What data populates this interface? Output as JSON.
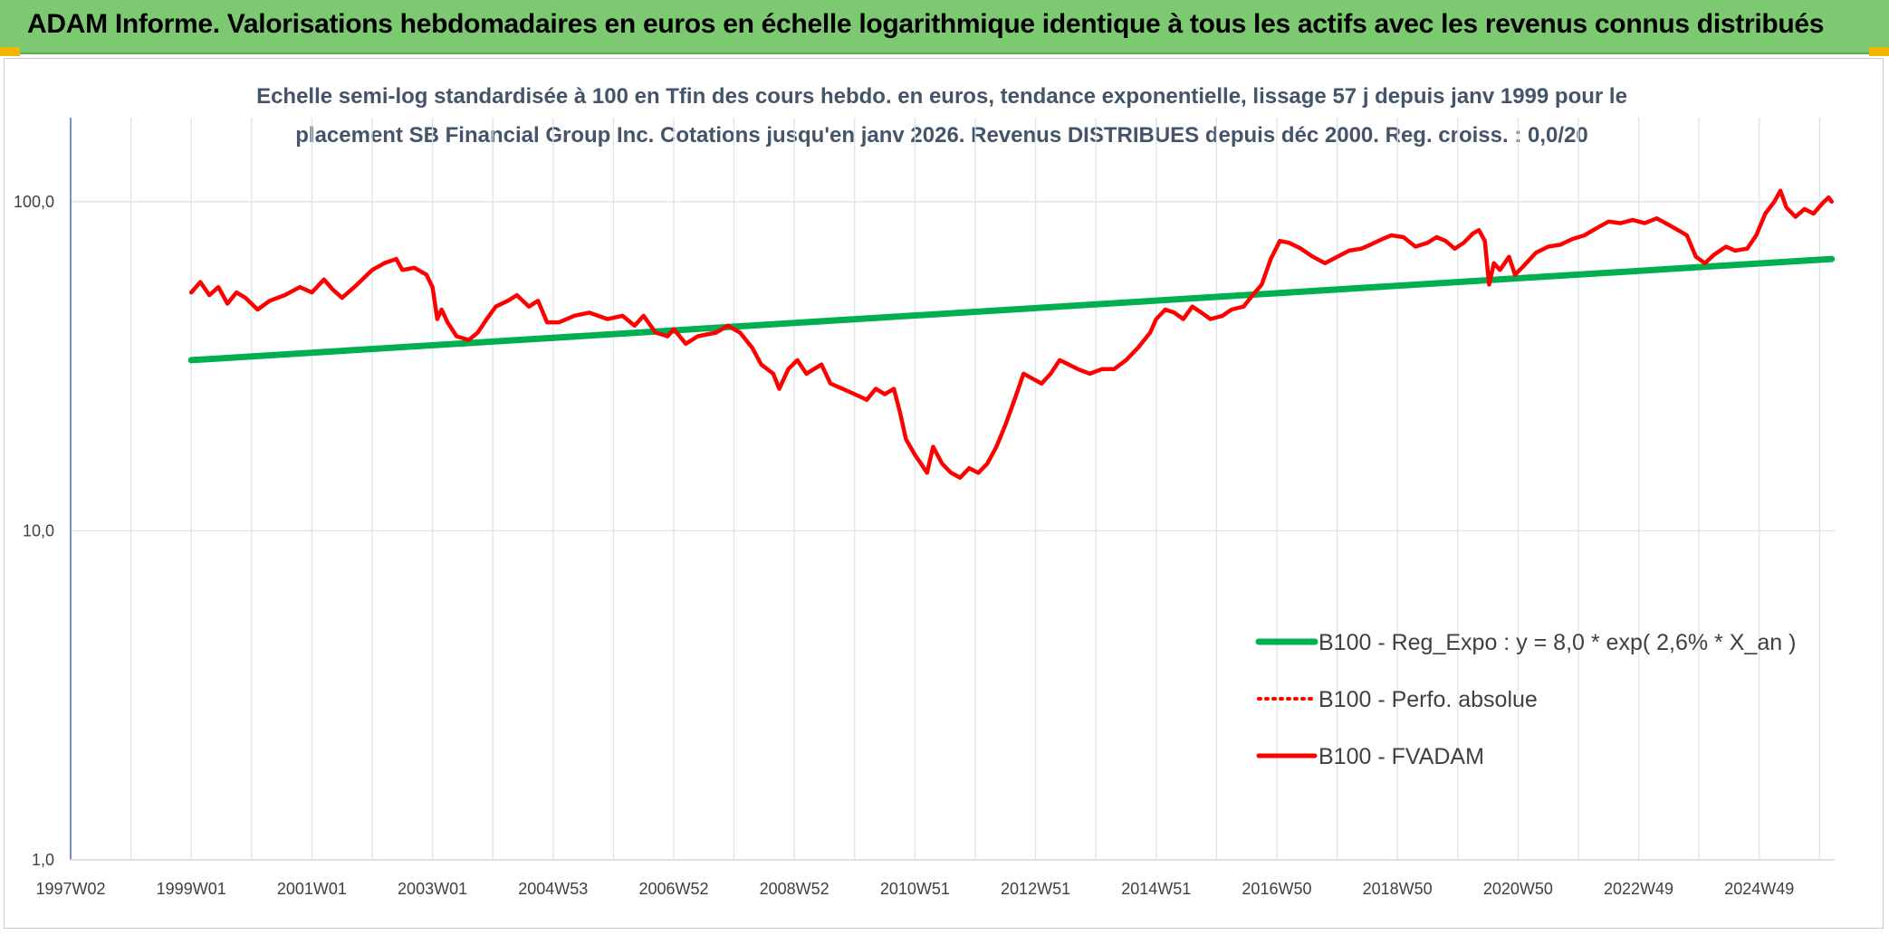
{
  "header": {
    "title": "ADAM Informe. Valorisations hebdomadaires en euros en échelle logarithmique identique à tous les actifs avec les revenus connus distribués"
  },
  "colors": {
    "banner": "#7dc972",
    "corner_accent": "#f2b600",
    "trend_line": "#00b050",
    "fvadam_line": "#ff0000",
    "perfo_line": "#ff0000",
    "subtitle": "#44546a"
  },
  "chart_data": {
    "type": "line",
    "title": "",
    "subtitle_lines": [
      "Echelle semi-log standardisée à 100 en Tfin des cours hebdo. en euros, tendance exponentielle, lissage 57 j depuis janv 1999 pour le",
      "placement SB Financial Group Inc. Cotations jusqu'en janv 2026. Revenus DISTRIBUES depuis déc 2000. Reg. croiss. : 0,0/20"
    ],
    "xlabel": "",
    "ylabel": "",
    "y_scale": "log",
    "ylim": [
      1,
      180
    ],
    "xlim": [
      1997.0,
      2026.25
    ],
    "grid": true,
    "y_ticks": [
      {
        "value": 1,
        "label": "1,0"
      },
      {
        "value": 10,
        "label": "10,0"
      },
      {
        "value": 100,
        "label": "100,0"
      }
    ],
    "x_ticks": [
      {
        "value": 1997.0,
        "label": "1997W02"
      },
      {
        "value": 1999.0,
        "label": "1999W01"
      },
      {
        "value": 2001.0,
        "label": "2001W01"
      },
      {
        "value": 2003.0,
        "label": "2003W01"
      },
      {
        "value": 2005.0,
        "label": "2004W53"
      },
      {
        "value": 2007.0,
        "label": "2006W52"
      },
      {
        "value": 2009.0,
        "label": "2008W52"
      },
      {
        "value": 2011.0,
        "label": "2010W51"
      },
      {
        "value": 2013.0,
        "label": "2012W51"
      },
      {
        "value": 2015.0,
        "label": "2014W51"
      },
      {
        "value": 2017.0,
        "label": "2016W50"
      },
      {
        "value": 2019.0,
        "label": "2018W50"
      },
      {
        "value": 2021.0,
        "label": "2020W50"
      },
      {
        "value": 2023.0,
        "label": "2022W49"
      },
      {
        "value": 2025.0,
        "label": "2024W49"
      }
    ],
    "legend_position": "right",
    "series": [
      {
        "name": "B100 - Reg_Expo : y = 8,0 * exp( 2,6% *  X_an )",
        "style": "solid-thick",
        "color": "#00b050",
        "points": [
          [
            1999.0,
            33
          ],
          [
            2026.2,
            67
          ]
        ]
      },
      {
        "name": "B100 - Perfo. absolue",
        "style": "dotted",
        "color": "#ff0000",
        "points": []
      },
      {
        "name": "B100 - FVADAM",
        "style": "solid",
        "color": "#ff0000",
        "points": [
          [
            1999.0,
            53
          ],
          [
            1999.15,
            57
          ],
          [
            1999.3,
            52
          ],
          [
            1999.45,
            55
          ],
          [
            1999.6,
            49
          ],
          [
            1999.75,
            53
          ],
          [
            1999.9,
            51
          ],
          [
            2000.1,
            47
          ],
          [
            2000.3,
            50
          ],
          [
            2000.55,
            52
          ],
          [
            2000.8,
            55
          ],
          [
            2001.0,
            53
          ],
          [
            2001.2,
            58
          ],
          [
            2001.35,
            54
          ],
          [
            2001.5,
            51
          ],
          [
            2001.75,
            56
          ],
          [
            2002.0,
            62
          ],
          [
            2002.2,
            65
          ],
          [
            2002.4,
            67
          ],
          [
            2002.5,
            62
          ],
          [
            2002.7,
            63
          ],
          [
            2002.9,
            60
          ],
          [
            2003.0,
            55
          ],
          [
            2003.08,
            44
          ],
          [
            2003.15,
            47
          ],
          [
            2003.25,
            43
          ],
          [
            2003.4,
            39
          ],
          [
            2003.6,
            38
          ],
          [
            2003.75,
            40
          ],
          [
            2003.9,
            44
          ],
          [
            2004.05,
            48
          ],
          [
            2004.25,
            50
          ],
          [
            2004.4,
            52
          ],
          [
            2004.6,
            48
          ],
          [
            2004.75,
            50
          ],
          [
            2004.9,
            43
          ],
          [
            2005.1,
            43
          ],
          [
            2005.35,
            45
          ],
          [
            2005.6,
            46
          ],
          [
            2005.9,
            44
          ],
          [
            2006.15,
            45
          ],
          [
            2006.35,
            42
          ],
          [
            2006.5,
            45
          ],
          [
            2006.7,
            40
          ],
          [
            2006.9,
            39
          ],
          [
            2007.0,
            41
          ],
          [
            2007.2,
            37
          ],
          [
            2007.4,
            39
          ],
          [
            2007.7,
            40
          ],
          [
            2007.9,
            42
          ],
          [
            2008.1,
            40
          ],
          [
            2008.3,
            36
          ],
          [
            2008.45,
            32
          ],
          [
            2008.65,
            30
          ],
          [
            2008.75,
            27
          ],
          [
            2008.9,
            31
          ],
          [
            2009.05,
            33
          ],
          [
            2009.2,
            30
          ],
          [
            2009.45,
            32
          ],
          [
            2009.6,
            28
          ],
          [
            2009.8,
            27
          ],
          [
            2010.0,
            26
          ],
          [
            2010.2,
            25
          ],
          [
            2010.35,
            27
          ],
          [
            2010.5,
            26
          ],
          [
            2010.65,
            27
          ],
          [
            2010.75,
            23
          ],
          [
            2010.85,
            19
          ],
          [
            2011.0,
            17
          ],
          [
            2011.1,
            16
          ],
          [
            2011.2,
            15
          ],
          [
            2011.3,
            18
          ],
          [
            2011.45,
            16
          ],
          [
            2011.6,
            15
          ],
          [
            2011.75,
            14.5
          ],
          [
            2011.9,
            15.5
          ],
          [
            2012.05,
            15
          ],
          [
            2012.2,
            16
          ],
          [
            2012.35,
            18
          ],
          [
            2012.5,
            21
          ],
          [
            2012.65,
            25
          ],
          [
            2012.8,
            30
          ],
          [
            2012.95,
            29
          ],
          [
            2013.1,
            28
          ],
          [
            2013.25,
            30
          ],
          [
            2013.4,
            33
          ],
          [
            2013.55,
            32
          ],
          [
            2013.7,
            31
          ],
          [
            2013.9,
            30
          ],
          [
            2014.1,
            31
          ],
          [
            2014.3,
            31
          ],
          [
            2014.5,
            33
          ],
          [
            2014.7,
            36
          ],
          [
            2014.9,
            40
          ],
          [
            2015.0,
            44
          ],
          [
            2015.15,
            47
          ],
          [
            2015.3,
            46
          ],
          [
            2015.45,
            44
          ],
          [
            2015.6,
            48
          ],
          [
            2015.75,
            46
          ],
          [
            2015.9,
            44
          ],
          [
            2016.1,
            45
          ],
          [
            2016.25,
            47
          ],
          [
            2016.45,
            48
          ],
          [
            2016.6,
            52
          ],
          [
            2016.75,
            56
          ],
          [
            2016.9,
            67
          ],
          [
            2017.05,
            76
          ],
          [
            2017.2,
            75
          ],
          [
            2017.4,
            72
          ],
          [
            2017.6,
            68
          ],
          [
            2017.8,
            65
          ],
          [
            2018.0,
            68
          ],
          [
            2018.2,
            71
          ],
          [
            2018.4,
            72
          ],
          [
            2018.55,
            74
          ],
          [
            2018.75,
            77
          ],
          [
            2018.9,
            79
          ],
          [
            2019.1,
            78
          ],
          [
            2019.3,
            73
          ],
          [
            2019.5,
            75
          ],
          [
            2019.65,
            78
          ],
          [
            2019.8,
            76
          ],
          [
            2019.95,
            72
          ],
          [
            2020.1,
            75
          ],
          [
            2020.25,
            80
          ],
          [
            2020.35,
            82
          ],
          [
            2020.45,
            76
          ],
          [
            2020.52,
            56
          ],
          [
            2020.6,
            65
          ],
          [
            2020.7,
            62
          ],
          [
            2020.85,
            68
          ],
          [
            2020.95,
            60
          ],
          [
            2021.1,
            64
          ],
          [
            2021.3,
            70
          ],
          [
            2021.5,
            73
          ],
          [
            2021.7,
            74
          ],
          [
            2021.9,
            77
          ],
          [
            2022.1,
            79
          ],
          [
            2022.3,
            83
          ],
          [
            2022.5,
            87
          ],
          [
            2022.7,
            86
          ],
          [
            2022.9,
            88
          ],
          [
            2023.1,
            86
          ],
          [
            2023.3,
            89
          ],
          [
            2023.5,
            85
          ],
          [
            2023.7,
            81
          ],
          [
            2023.8,
            79
          ],
          [
            2023.95,
            68
          ],
          [
            2024.1,
            65
          ],
          [
            2024.25,
            69
          ],
          [
            2024.45,
            73
          ],
          [
            2024.6,
            71
          ],
          [
            2024.8,
            72
          ],
          [
            2024.95,
            79
          ],
          [
            2025.1,
            92
          ],
          [
            2025.25,
            100
          ],
          [
            2025.35,
            108
          ],
          [
            2025.45,
            96
          ],
          [
            2025.6,
            90
          ],
          [
            2025.75,
            95
          ],
          [
            2025.9,
            92
          ],
          [
            2026.05,
            99
          ],
          [
            2026.15,
            103
          ],
          [
            2026.2,
            100
          ]
        ]
      }
    ]
  }
}
